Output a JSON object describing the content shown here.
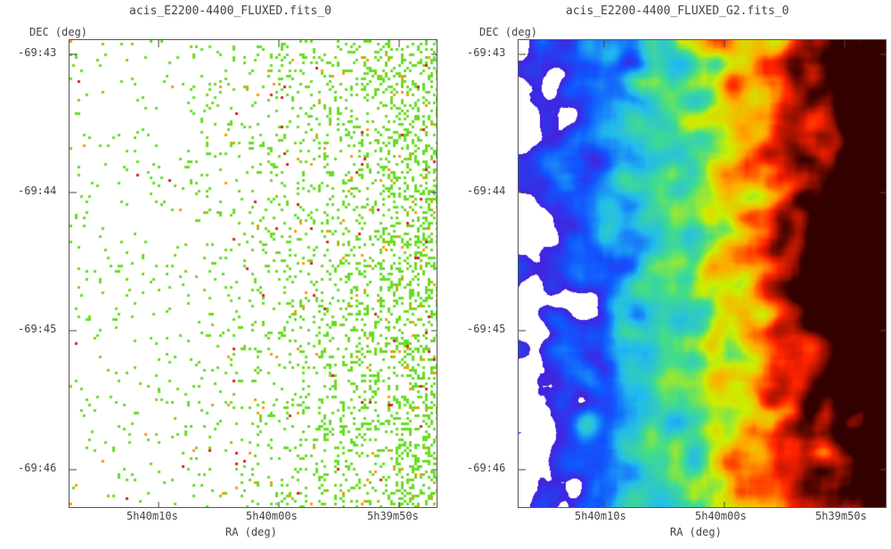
{
  "chart_data": [
    {
      "type": "heatmap",
      "title": "acis_E2200-4400_FLUXED.fits_0",
      "xlabel": "RA (deg)",
      "ylabel": "DEC (deg)",
      "x_ticks": [
        "5h40m10s",
        "5h40m00s",
        "5h39m50s"
      ],
      "y_ticks": [
        "-69:43",
        "-69:44",
        "-69:45",
        "-69:46"
      ],
      "style": "sparse binned event map, mostly single-count pixels",
      "colors": {
        "low": "#66dd22",
        "mid": "#ff9900",
        "high": "#dd2222"
      },
      "density_gradient": "counts increase toward lower RA (right side)"
    },
    {
      "type": "heatmap",
      "title": "acis_E2200-4400_FLUXED_G2.fits_0",
      "xlabel": "RA (deg)",
      "ylabel": "DEC (deg)",
      "x_ticks": [
        "5h40m10s",
        "5h40m00s",
        "5h39m50s"
      ],
      "y_ticks": [
        "-69:43",
        "-69:44",
        "-69:45",
        "-69:46"
      ],
      "style": "gaussian smoothed map",
      "colormap": [
        "#ffffff",
        "#4422dd",
        "#1155ff",
        "#22bbee",
        "#44dd88",
        "#ccee00",
        "#ffaa00",
        "#ff2200",
        "#330000"
      ],
      "density_gradient": "intensity increases toward lower RA (right side), peak at right edge near -69:44.5"
    }
  ]
}
